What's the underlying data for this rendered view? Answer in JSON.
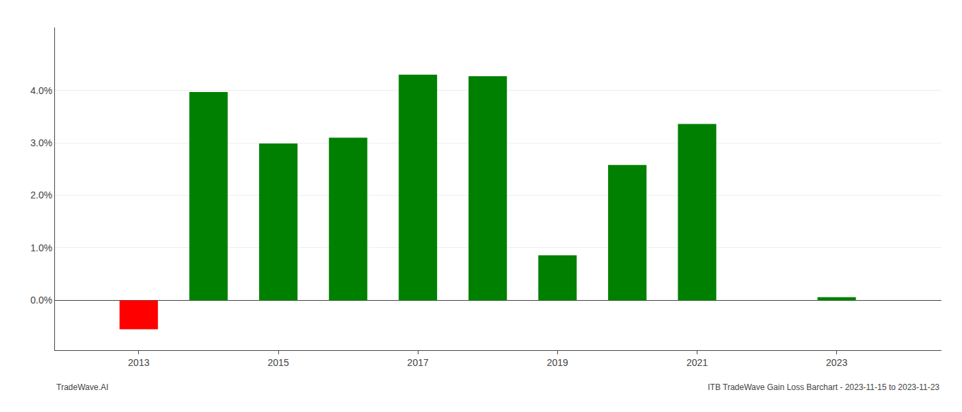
{
  "chart_data": {
    "type": "bar",
    "x": [
      2013,
      2014,
      2015,
      2016,
      2017,
      2018,
      2019,
      2020,
      2021,
      2022,
      2023
    ],
    "values": [
      -0.0055,
      0.0397,
      0.0299,
      0.031,
      0.043,
      0.0427,
      0.0086,
      0.0258,
      0.0336,
      0.0,
      0.0006
    ],
    "colors": [
      "#ff0000",
      "#008000",
      "#008000",
      "#008000",
      "#008000",
      "#008000",
      "#008000",
      "#008000",
      "#008000",
      "#008000",
      "#008000"
    ],
    "xlim": [
      2011.8,
      2024.5
    ],
    "xticks": [
      2013,
      2015,
      2017,
      2019,
      2021,
      2023
    ],
    "ylim": [
      -0.0095,
      0.052
    ],
    "yticks": [
      {
        "value": 0.0,
        "label": "0.0%"
      },
      {
        "value": 0.01,
        "label": "1.0%"
      },
      {
        "value": 0.02,
        "label": "2.0%"
      },
      {
        "value": 0.03,
        "label": "3.0%"
      },
      {
        "value": 0.04,
        "label": "4.0%"
      }
    ],
    "grid": true,
    "annotations": [
      "TradeWave.AI",
      "ITB TradeWave Gain Loss Barchart - 2023-11-15 to 2023-11-23"
    ]
  }
}
